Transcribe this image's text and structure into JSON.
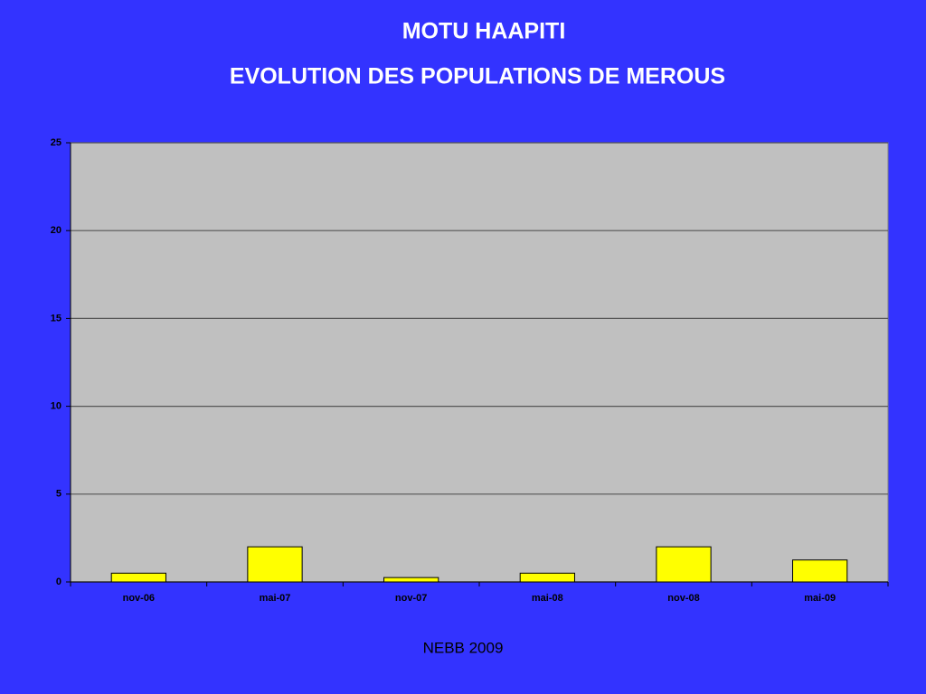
{
  "chart_data": {
    "type": "bar",
    "title": "MOTU HAAPITI",
    "subtitle": "EVOLUTION DES POPULATIONS DE MEROUS",
    "categories": [
      "nov-06",
      "mai-07",
      "nov-07",
      "mai-08",
      "nov-08",
      "mai-09"
    ],
    "values": [
      0.5,
      2,
      0.25,
      0.5,
      2,
      1.25
    ],
    "color": "#ffff00",
    "ylim": [
      0,
      25
    ],
    "yticks": [
      0,
      5,
      10,
      15,
      20,
      25
    ],
    "grid": true,
    "source": "NEBB 2009"
  }
}
